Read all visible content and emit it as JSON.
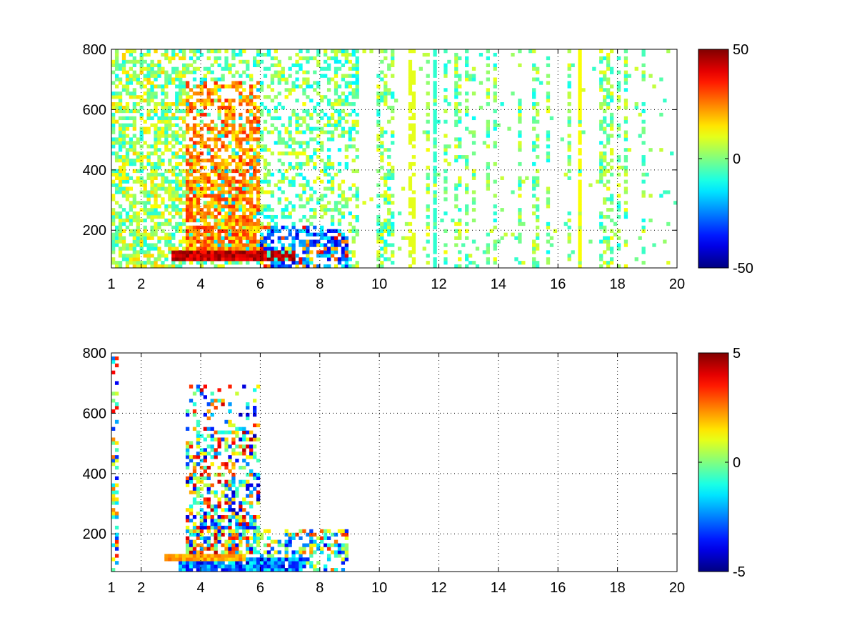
{
  "chart_data": [
    {
      "type": "heatmap",
      "panel": "top",
      "title": "",
      "xlabel": "",
      "ylabel": "",
      "xlim": [
        1,
        20
      ],
      "ylim": [
        75,
        800
      ],
      "grid": true,
      "x_ticks": [
        1,
        2,
        4,
        6,
        8,
        10,
        12,
        14,
        16,
        18,
        20
      ],
      "x_tick_labels": [
        "1",
        "2",
        "4",
        "6",
        "8",
        "10",
        "12",
        "14",
        "16",
        "18",
        "20"
      ],
      "y_ticks": [
        200,
        400,
        600,
        800
      ],
      "y_tick_labels": [
        "200",
        "400",
        "600",
        "800"
      ],
      "colorbar": {
        "min": -50,
        "max": 50,
        "ticks": [
          50,
          0,
          -50
        ],
        "tick_labels": [
          "50",
          "0",
          "-50"
        ],
        "colormap": "jet"
      },
      "features": [
        {
          "desc": "strong positive band",
          "x": [
            3.0,
            7.2
          ],
          "y": [
            95,
            135
          ],
          "value": 45
        },
        {
          "desc": "negative patches",
          "x": [
            6.0,
            9.0
          ],
          "y": [
            90,
            210
          ],
          "value": -35
        },
        {
          "desc": "positive plume",
          "x": [
            3.5,
            6.0
          ],
          "y": [
            140,
            700
          ],
          "value": 25
        },
        {
          "desc": "weak vertical streaks",
          "x": [
            1,
            20
          ],
          "y": [
            75,
            800
          ],
          "value": 5
        },
        {
          "desc": "persistent vertical line",
          "x": [
            16.7,
            16.8
          ],
          "y": [
            75,
            800
          ],
          "value": 12
        }
      ]
    },
    {
      "type": "heatmap",
      "panel": "bottom",
      "title": "",
      "xlabel": "",
      "ylabel": "",
      "xlim": [
        1,
        20
      ],
      "ylim": [
        75,
        800
      ],
      "grid": true,
      "x_ticks": [
        1,
        2,
        4,
        6,
        8,
        10,
        12,
        14,
        16,
        18,
        20
      ],
      "x_tick_labels": [
        "1",
        "2",
        "4",
        "6",
        "8",
        "10",
        "12",
        "14",
        "16",
        "18",
        "20"
      ],
      "y_ticks": [
        200,
        400,
        600,
        800
      ],
      "y_tick_labels": [
        "200",
        "400",
        "600",
        "800"
      ],
      "colorbar": {
        "min": -5,
        "max": 5,
        "ticks": [
          5,
          0,
          -5
        ],
        "tick_labels": [
          "5",
          "0",
          "-5"
        ],
        "colormap": "jet"
      },
      "features": [
        {
          "desc": "mixed-sign plume",
          "x": [
            3.5,
            6.0
          ],
          "y": [
            150,
            700
          ],
          "value": 3
        },
        {
          "desc": "positive band",
          "x": [
            2.8,
            5.5
          ],
          "y": [
            105,
            135
          ],
          "value": 2
        },
        {
          "desc": "negative band",
          "x": [
            3.3,
            7.5
          ],
          "y": [
            80,
            120
          ],
          "value": -4
        },
        {
          "desc": "mixed patches",
          "x": [
            6.0,
            9.0
          ],
          "y": [
            80,
            210
          ],
          "value": 2
        },
        {
          "desc": "sparse streaks",
          "x": [
            1.0,
            2.2
          ],
          "y": [
            100,
            800
          ],
          "value": -2
        }
      ]
    }
  ]
}
